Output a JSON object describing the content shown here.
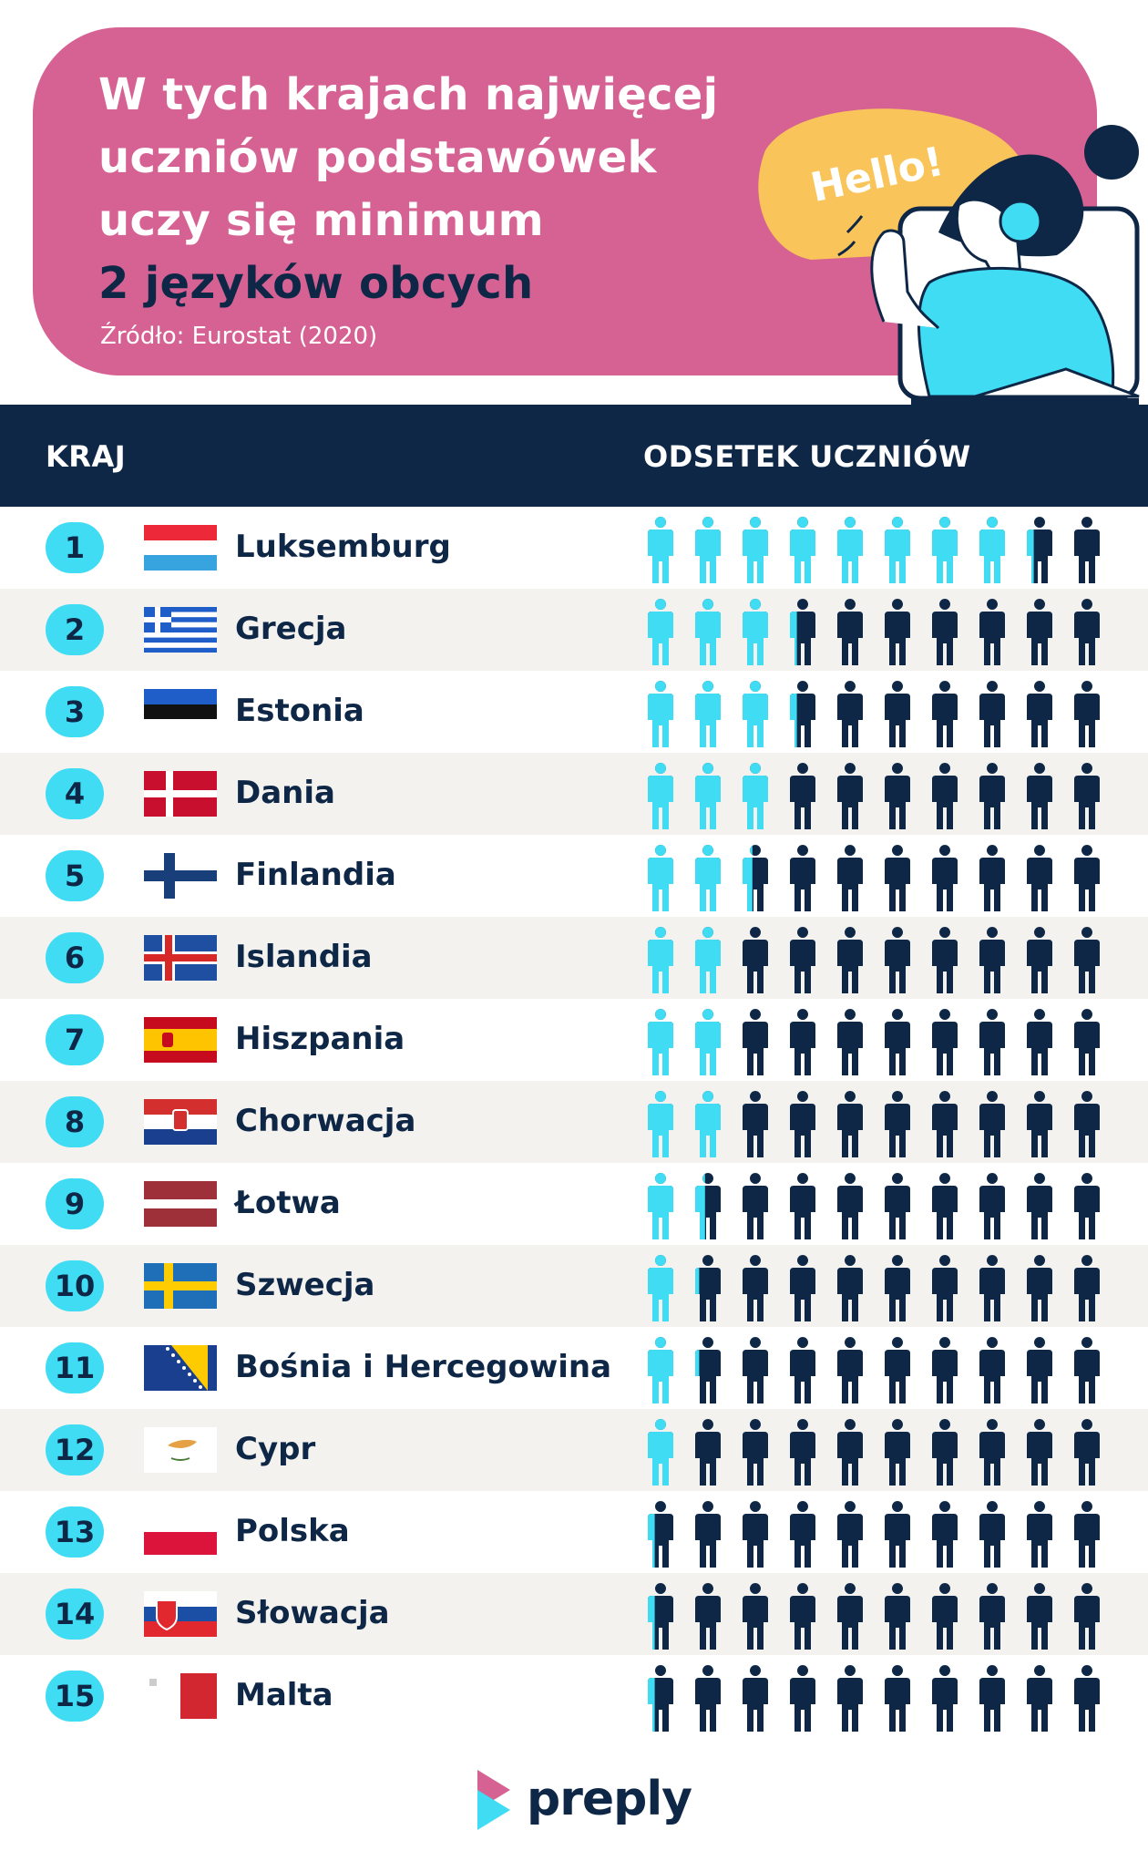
{
  "header": {
    "title_lines": [
      "W tych krajach najwięcej",
      "uczniów podstawówek",
      "uczy się minimum"
    ],
    "title_accent": "2 języków obcych",
    "source": "Źródło: Eurostat (2020)",
    "bubble": "Hello!"
  },
  "table": {
    "col_country": "KRAJ",
    "col_share": "ODSETEK UCZNIÓW"
  },
  "colors": {
    "pink": "#d66293",
    "navy": "#0e2746",
    "cyan": "#3fdcf4",
    "yellow": "#f9c55a",
    "stripe": "#f3f2ee"
  },
  "chart_data": {
    "type": "pictogram",
    "icons_per_row": 10,
    "unit": "% uczniów",
    "rows": [
      {
        "rank": "1",
        "country": "Luksemburg",
        "flag": "lu-flag-icon",
        "value": 83
      },
      {
        "rank": "2",
        "country": "Grecja",
        "flag": "gr-flag-icon",
        "value": 33
      },
      {
        "rank": "3",
        "country": "Estonia",
        "flag": "ee-flag-icon",
        "value": 33
      },
      {
        "rank": "4",
        "country": "Dania",
        "flag": "dk-flag-icon",
        "value": 30
      },
      {
        "rank": "5",
        "country": "Finlandia",
        "flag": "fi-flag-icon",
        "value": 24
      },
      {
        "rank": "6",
        "country": "Islandia",
        "flag": "is-flag-icon",
        "value": 20
      },
      {
        "rank": "7",
        "country": "Hiszpania",
        "flag": "es-flag-icon",
        "value": 20
      },
      {
        "rank": "8",
        "country": "Chorwacja",
        "flag": "hr-flag-icon",
        "value": 20
      },
      {
        "rank": "9",
        "country": "Łotwa",
        "flag": "lv-flag-icon",
        "value": 14
      },
      {
        "rank": "10",
        "country": "Szwecja",
        "flag": "se-flag-icon",
        "value": 12
      },
      {
        "rank": "11",
        "country": "Bośnia i Hercegowina",
        "flag": "ba-flag-icon",
        "value": 12
      },
      {
        "rank": "12",
        "country": "Cypr",
        "flag": "cy-flag-icon",
        "value": 10
      },
      {
        "rank": "13",
        "country": "Polska",
        "flag": "pl-flag-icon",
        "value": 3
      },
      {
        "rank": "14",
        "country": "Słowacja",
        "flag": "sk-flag-icon",
        "value": 3
      },
      {
        "rank": "15",
        "country": "Malta",
        "flag": "mt-flag-icon",
        "value": 3
      }
    ]
  },
  "footer": {
    "brand": "preply"
  }
}
